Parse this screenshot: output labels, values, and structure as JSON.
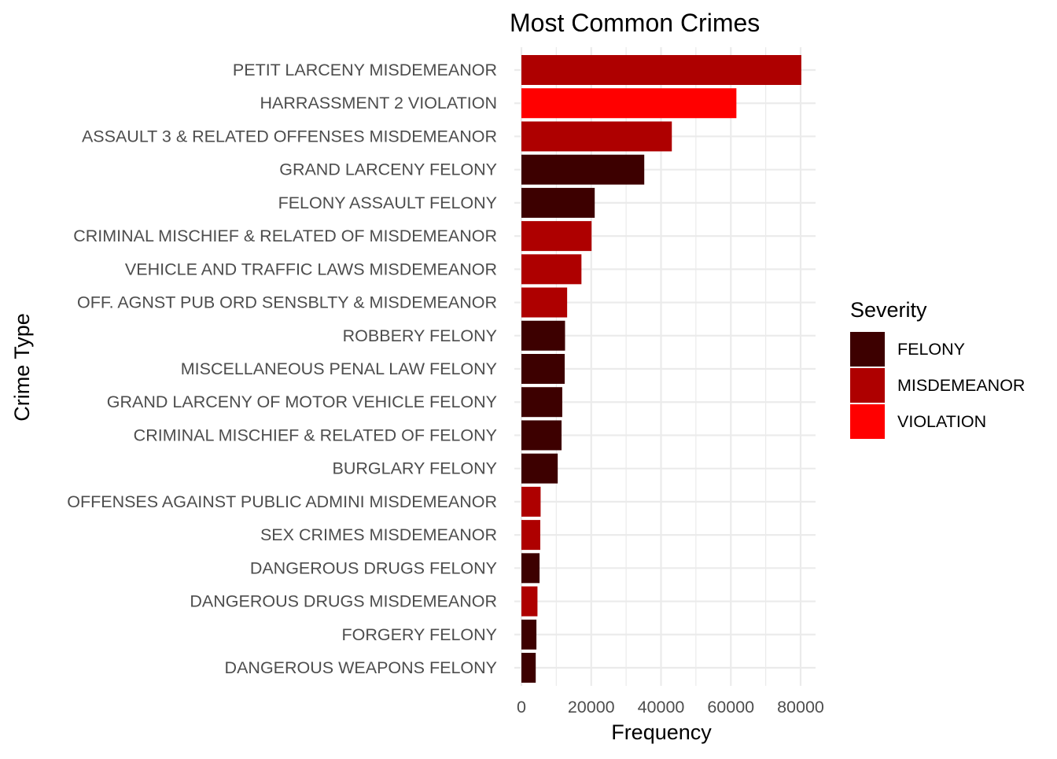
{
  "chart_data": {
    "type": "bar",
    "orientation": "horizontal",
    "title": "Most Common Crimes",
    "xlabel": "Frequency",
    "ylabel": "Crime Type",
    "xlim": [
      0,
      80000
    ],
    "xticks": [
      0,
      20000,
      40000,
      60000,
      80000
    ],
    "grid": true,
    "legend": {
      "title": "Severity",
      "placement": "right",
      "entries": [
        {
          "label": "FELONY",
          "color": "#3D0000"
        },
        {
          "label": "MISDEMEANOR",
          "color": "#AE0000"
        },
        {
          "label": "VIOLATION",
          "color": "#FF0000"
        }
      ]
    },
    "categories": [
      "PETIT LARCENY MISDEMEANOR",
      "HARRASSMENT 2 VIOLATION",
      "ASSAULT 3 & RELATED OFFENSES MISDEMEANOR",
      "GRAND LARCENY FELONY",
      "FELONY ASSAULT FELONY",
      "CRIMINAL MISCHIEF & RELATED OF MISDEMEANOR",
      "VEHICLE AND TRAFFIC LAWS MISDEMEANOR",
      "OFF. AGNST PUB ORD SENSBLTY & MISDEMEANOR",
      "ROBBERY FELONY",
      "MISCELLANEOUS PENAL LAW FELONY",
      "GRAND LARCENY OF MOTOR VEHICLE FELONY",
      "CRIMINAL MISCHIEF & RELATED OF FELONY",
      "BURGLARY FELONY",
      "OFFENSES AGAINST PUBLIC ADMINI MISDEMEANOR",
      "SEX CRIMES MISDEMEANOR",
      "DANGEROUS DRUGS FELONY",
      "DANGEROUS DRUGS MISDEMEANOR",
      "FORGERY FELONY",
      "DANGEROUS WEAPONS FELONY"
    ],
    "values": [
      80200,
      61600,
      43100,
      35200,
      21000,
      20100,
      17200,
      13100,
      12500,
      12400,
      11700,
      11500,
      10400,
      5500,
      5400,
      5200,
      4600,
      4300,
      4100
    ],
    "severity": [
      "MISDEMEANOR",
      "VIOLATION",
      "MISDEMEANOR",
      "FELONY",
      "FELONY",
      "MISDEMEANOR",
      "MISDEMEANOR",
      "MISDEMEANOR",
      "FELONY",
      "FELONY",
      "FELONY",
      "FELONY",
      "FELONY",
      "MISDEMEANOR",
      "MISDEMEANOR",
      "FELONY",
      "MISDEMEANOR",
      "FELONY",
      "FELONY"
    ]
  }
}
